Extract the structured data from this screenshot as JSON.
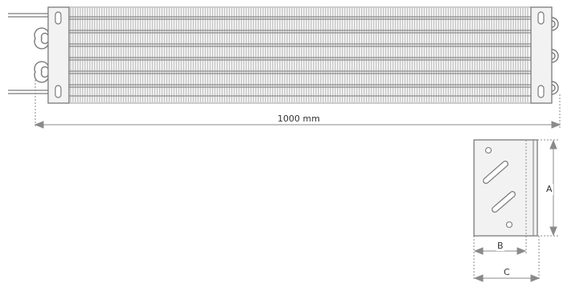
{
  "diagram": {
    "length_label": "1000 mm",
    "dim_a_label": "A",
    "dim_b_label": "B",
    "dim_c_label": "C"
  },
  "colors": {
    "stroke": "#7a7a7a",
    "fin": "#9a9a9a",
    "plate_fill": "#f2f2f2",
    "dimension": "#8a8a8a"
  },
  "icons": {
    "coil": "finned-tube-evaporator",
    "bracket": "mounting-bracket-side-view"
  }
}
